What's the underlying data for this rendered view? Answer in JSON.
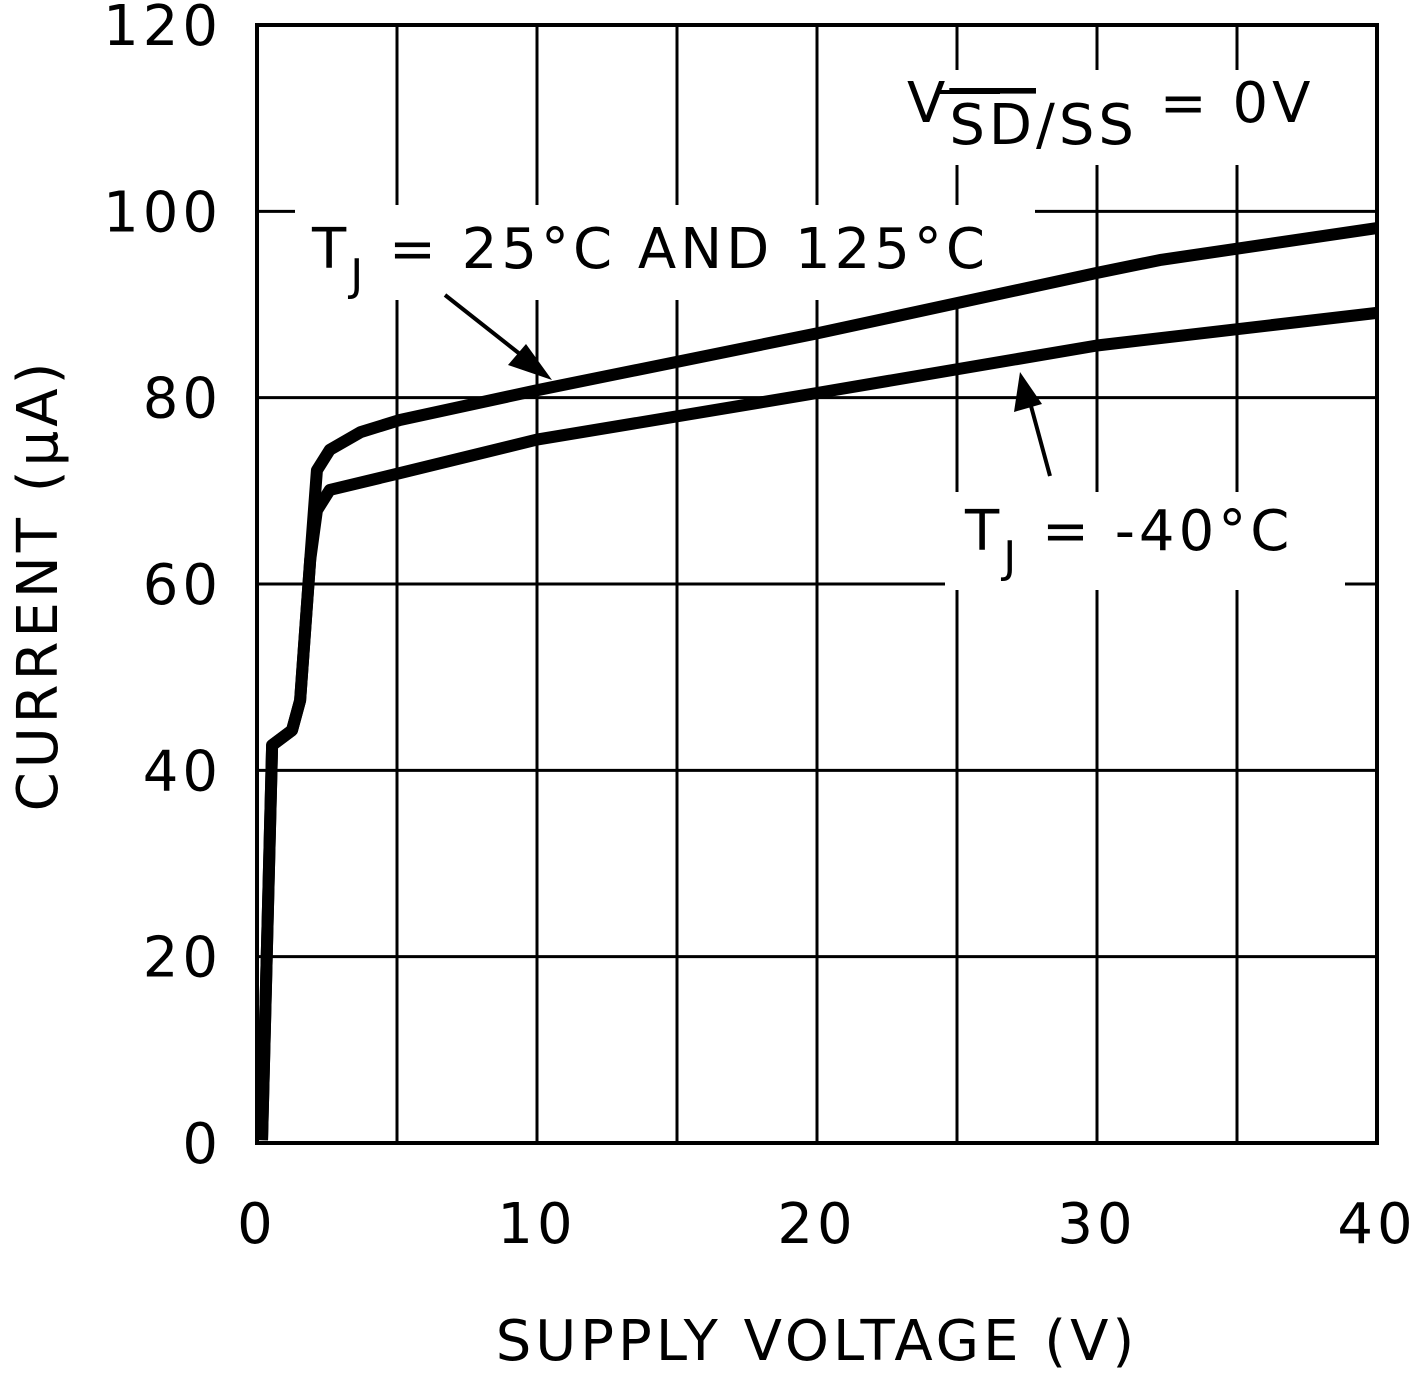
{
  "chart_data": {
    "type": "line",
    "x_label": "SUPPLY VOLTAGE (V)",
    "y_label": "CURRENT (μA)",
    "xlim": [
      0,
      40
    ],
    "ylim": [
      0,
      120
    ],
    "xticks": [
      0,
      10,
      20,
      30,
      40
    ],
    "xminor_grid": [
      5,
      15,
      25,
      35
    ],
    "yticks": [
      0,
      20,
      40,
      60,
      80,
      100,
      120
    ],
    "grid": true,
    "color": "#000000",
    "condition": {
      "symbol": "V",
      "sub_overline": "SD",
      "sub": "/SS",
      "rest": " = 0V"
    },
    "series": [
      {
        "name": {
          "symbol": "T",
          "sub": "J",
          "rest": " = 25°C AND 125°C"
        },
        "x": [
          0.18,
          0.54,
          1.25,
          1.54,
          1.9,
          2.14,
          2.6,
          3.7,
          5.1,
          10,
          20,
          30,
          32.3,
          40
        ],
        "values": [
          0.3,
          42.7,
          44.3,
          47.5,
          62.6,
          72.2,
          74.4,
          76.3,
          77.6,
          80.8,
          86.9,
          93.4,
          94.8,
          98.2
        ]
      },
      {
        "name": {
          "symbol": "T",
          "sub": "J",
          "rest": " = -40°C"
        },
        "x": [
          0.18,
          0.54,
          1.25,
          1.54,
          1.9,
          2.14,
          2.6,
          5.1,
          10,
          20,
          30,
          40
        ],
        "values": [
          0.3,
          42.7,
          44.3,
          47.5,
          62.6,
          67.9,
          70.1,
          71.9,
          75.5,
          80.5,
          85.6,
          89.1
        ]
      }
    ]
  }
}
